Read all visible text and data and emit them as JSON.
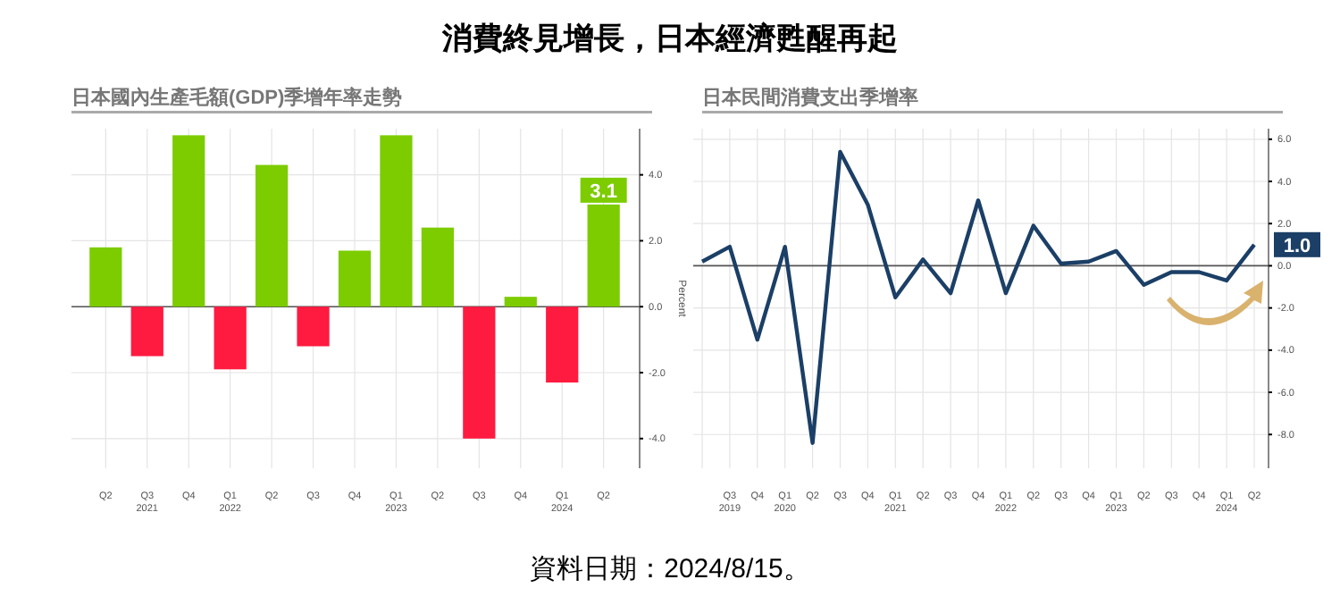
{
  "chart_data": [
    {
      "type": "bar",
      "title": "消費終見增長，日本經濟甦醒再起",
      "subtitle": "日本國內生產毛額(GDP)季增年率走勢",
      "ylabel": "Percent",
      "categories": [
        "Q2",
        "Q3\n2021",
        "Q4",
        "Q1\n2022",
        "Q2",
        "Q3",
        "Q4",
        "Q1\n2023",
        "Q2",
        "Q3",
        "Q4",
        "Q1\n2024",
        "Q2"
      ],
      "values": [
        1.8,
        -1.5,
        5.2,
        -1.9,
        4.3,
        -1.2,
        1.7,
        5.2,
        2.4,
        -4.0,
        0.3,
        -2.3,
        3.1
      ],
      "colors": [
        "#7ccc00",
        "#ff1a40",
        "#7ccc00",
        "#ff1a40",
        "#7ccc00",
        "#ff1a40",
        "#7ccc00",
        "#7ccc00",
        "#7ccc00",
        "#ff1a40",
        "#7ccc00",
        "#ff1a40",
        "#7ccc00"
      ],
      "value_labels": [
        null,
        null,
        null,
        null,
        null,
        null,
        null,
        null,
        null,
        null,
        null,
        null,
        "3.1"
      ],
      "ylim": [
        -4.9,
        5.4
      ],
      "yticks": [
        {
          "value": -4,
          "label": "-4.0"
        },
        {
          "value": -2,
          "label": "-2.0"
        },
        {
          "value": 0,
          "label": "0.0"
        },
        {
          "value": 2,
          "label": "2.0"
        },
        {
          "value": 4,
          "label": "4.0"
        }
      ],
      "grid": true,
      "annotations": [
        "資料日期：2024/8/15。"
      ]
    },
    {
      "type": "line",
      "title": "日本民間消費支出季增率",
      "categories": [
        null,
        "Q3\n2019",
        "Q4",
        "Q1\n2020",
        "Q2",
        "Q3",
        "Q4",
        "Q1\n2021",
        "Q2",
        "Q3",
        "Q4",
        "Q1\n2022",
        "Q2",
        "Q3",
        "Q4",
        "Q1\n2023",
        "Q2",
        "Q3",
        "Q4",
        "Q1\n2024",
        "Q2"
      ],
      "series": [
        {
          "color": "#1b3f66",
          "values": [
            0.2,
            0.9,
            -3.5,
            0.9,
            -8.4,
            5.4,
            2.9,
            -1.5,
            0.3,
            -1.3,
            3.1,
            -1.3,
            1.9,
            0.1,
            0.2,
            0.7,
            -0.9,
            -0.3,
            -0.3,
            -0.7,
            1.0
          ],
          "value_labels": [
            null,
            null,
            null,
            null,
            null,
            null,
            null,
            null,
            null,
            null,
            null,
            null,
            null,
            null,
            null,
            null,
            null,
            null,
            null,
            null,
            "1.0"
          ]
        }
      ],
      "ylim": [
        -9.6,
        6.5
      ],
      "yticks": [
        {
          "value": -8,
          "label": "-8.0"
        },
        {
          "value": -6,
          "label": "-6.0"
        },
        {
          "value": -4,
          "label": "-4.0"
        },
        {
          "value": -2,
          "label": "-2.0"
        },
        {
          "value": 0,
          "label": "0.0"
        },
        {
          "value": 2,
          "label": "2.0"
        },
        {
          "value": 4,
          "label": "4.0"
        },
        {
          "value": 6,
          "label": "6.0"
        }
      ],
      "grid": true,
      "marker": "none",
      "line_style": "solid"
    }
  ]
}
